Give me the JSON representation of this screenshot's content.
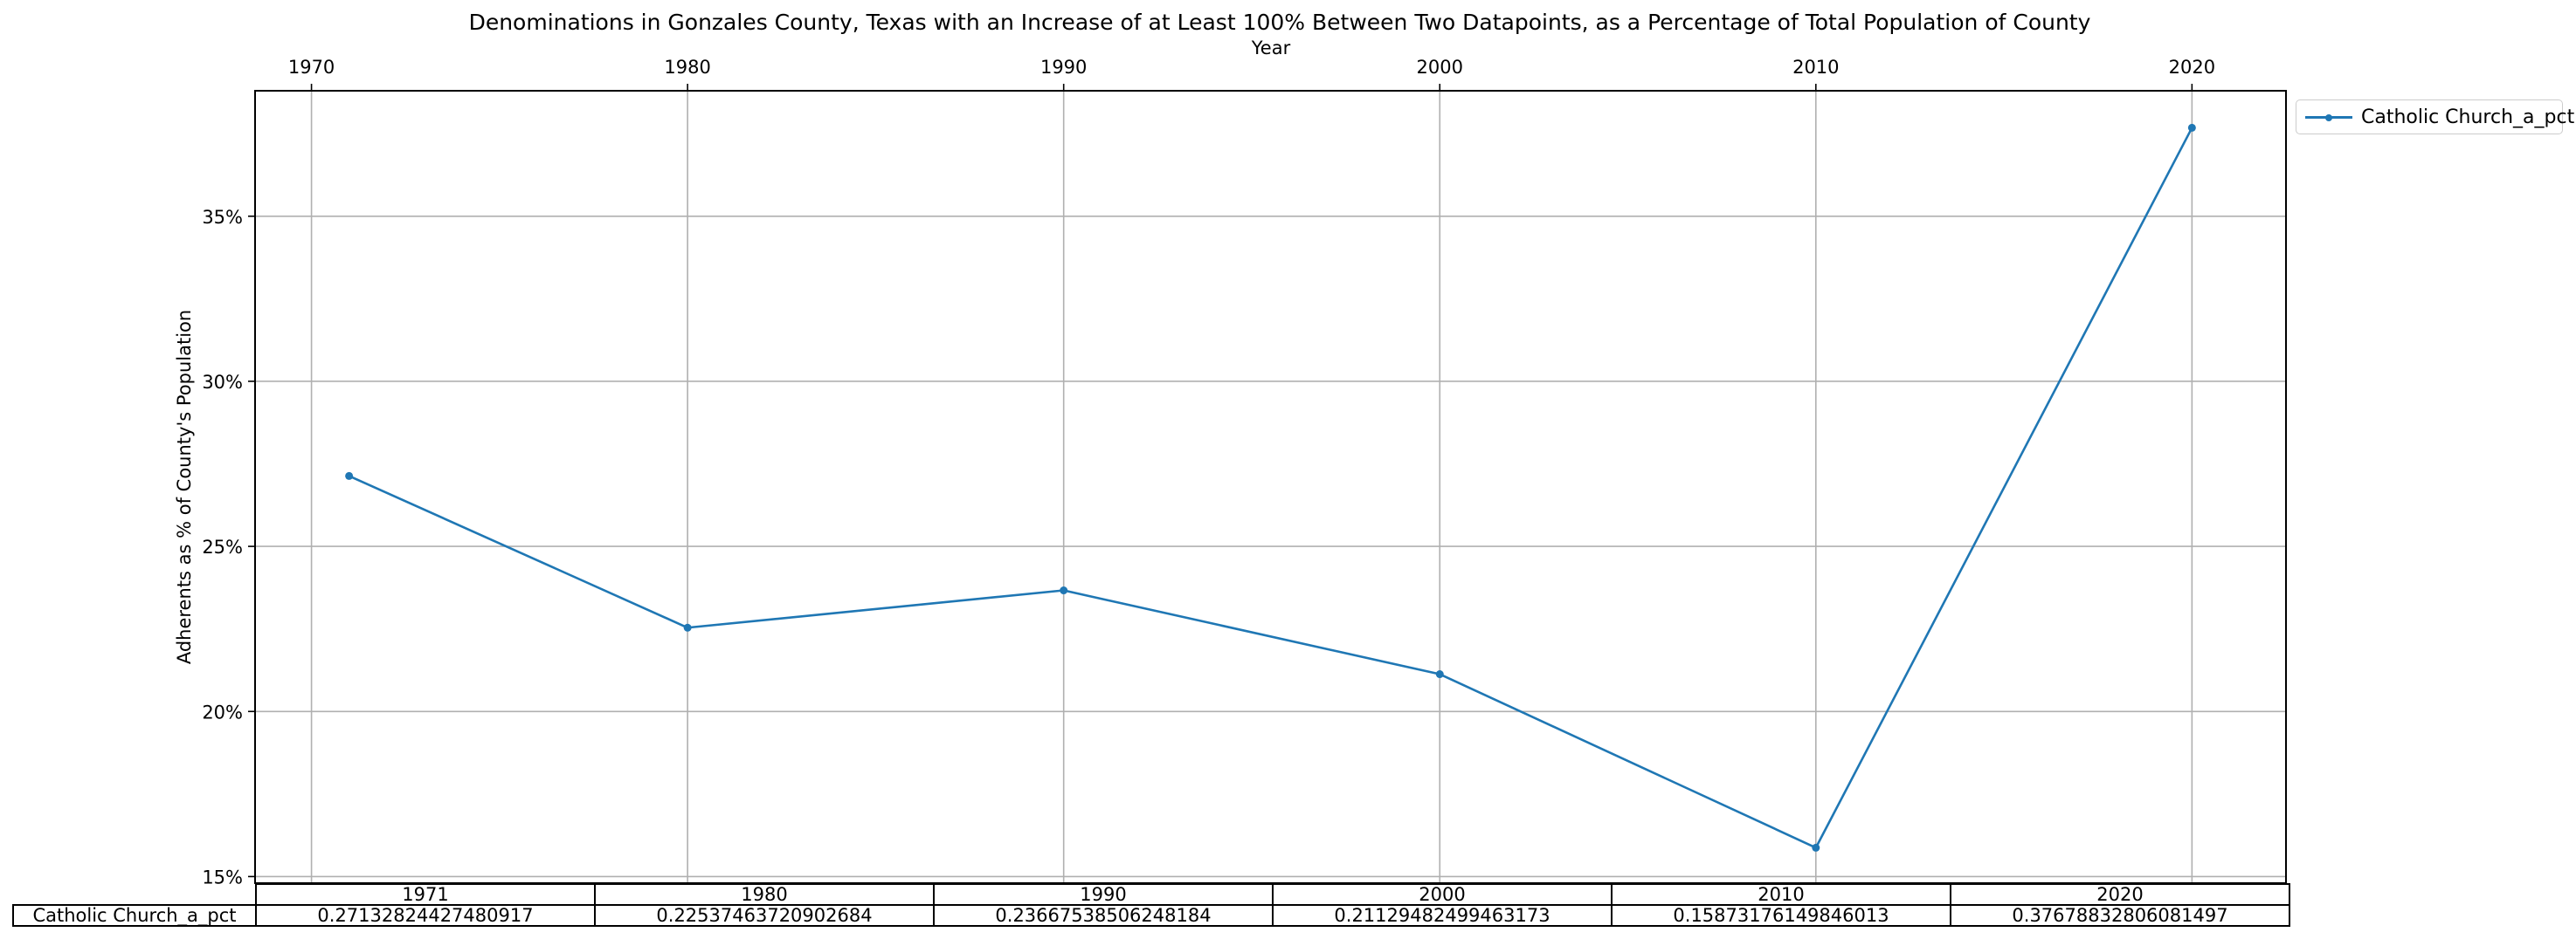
{
  "chart_data": {
    "type": "line",
    "title": "Denominations in Gonzales County, Texas with an Increase of at Least 100% Between Two Datapoints, as a Percentage of Total Population of County",
    "xlabel": "Year",
    "ylabel": "Adherents as % of County's Population",
    "x_ticks": [
      "1970",
      "1980",
      "1990",
      "2000",
      "2010",
      "2020"
    ],
    "y_ticks": [
      "15%",
      "20%",
      "25%",
      "30%",
      "35%"
    ],
    "xlim": [
      1968.5,
      2022.5
    ],
    "ylim": [
      0.148,
      0.388
    ],
    "grid": true,
    "legend_position": "outside top-right",
    "x": [
      1971,
      1980,
      1990,
      2000,
      2010,
      2020
    ],
    "series": [
      {
        "name": "Catholic Church_a_pct",
        "color": "#1f77b4",
        "values": [
          0.27132824427480917,
          0.22537463720902684,
          0.23667538506248184,
          0.21129482499463173,
          0.15873176149846013,
          0.37678832806081497
        ]
      }
    ]
  },
  "table": {
    "columns": [
      "1971",
      "1980",
      "1990",
      "2000",
      "2010",
      "2020"
    ],
    "row_label": "Catholic Church_a_pct",
    "cells": [
      "0.27132824427480917",
      "0.22537463720902684",
      "0.23667538506248184",
      "0.21129482499463173",
      "0.15873176149846013",
      "0.37678832806081497"
    ]
  }
}
